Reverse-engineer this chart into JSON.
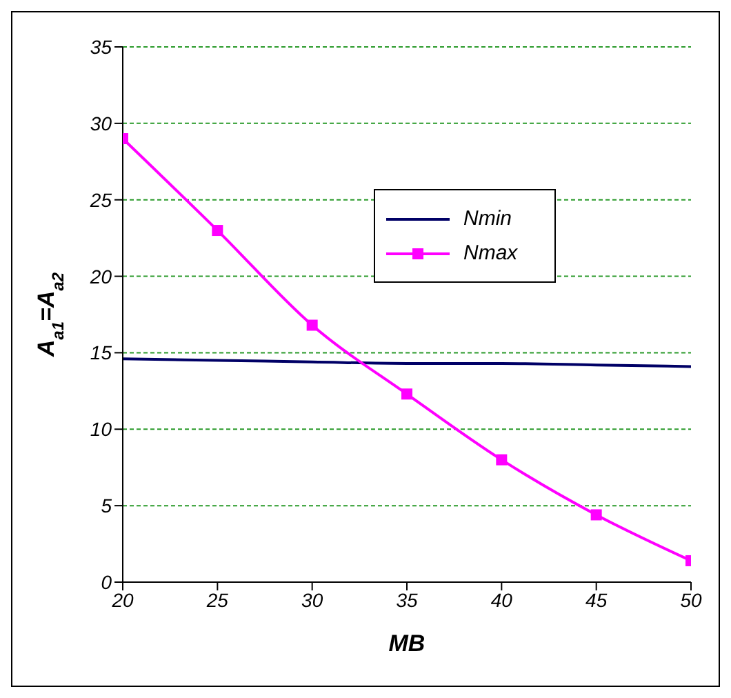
{
  "chart_data": {
    "type": "line",
    "xlabel": "MB",
    "ylabel": "A$_{a1}$=A$_{a2}$",
    "x": [
      20,
      25,
      30,
      35,
      40,
      45,
      50
    ],
    "series": [
      {
        "name": "Nmin",
        "color": "#000066",
        "marker": "none",
        "values": [
          14.6,
          14.5,
          14.4,
          14.3,
          14.3,
          14.2,
          14.1
        ]
      },
      {
        "name": "Nmax",
        "color": "#ff00ff",
        "marker": "square",
        "values": [
          29,
          23,
          16.8,
          12.3,
          8,
          4.4,
          1.4
        ]
      }
    ],
    "xlim": [
      20,
      50
    ],
    "xticks": [
      20,
      25,
      30,
      35,
      40,
      45,
      50
    ],
    "ylim": [
      0,
      35
    ],
    "yticks": [
      0,
      5,
      10,
      15,
      20,
      25,
      30,
      35
    ],
    "grid": "y",
    "legend": "top right",
    "line_style": "solid"
  }
}
